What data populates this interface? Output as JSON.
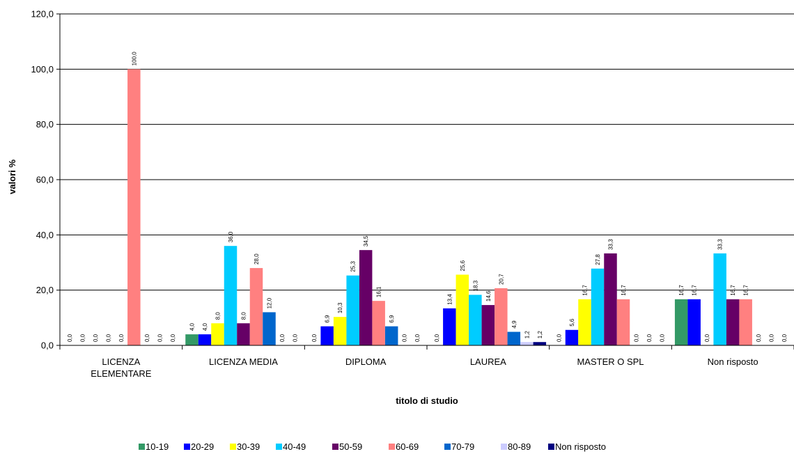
{
  "chart_data": {
    "type": "bar",
    "xlabel": "titolo di studio",
    "ylabel": "valori %",
    "ylim": [
      0,
      120
    ],
    "yticks": [
      "0,0",
      "20,0",
      "40,0",
      "60,0",
      "80,0",
      "100,0",
      "120,0"
    ],
    "grid": true,
    "legend_position": "bottom",
    "categories": [
      [
        "LICENZA",
        "ELEMENTARE"
      ],
      [
        "LICENZA MEDIA"
      ],
      [
        "DIPLOMA"
      ],
      [
        "LAUREA"
      ],
      [
        "MASTER O SPL"
      ],
      [
        "Non risposto"
      ]
    ],
    "series": [
      {
        "name": "10-19",
        "color": "#339966",
        "values": [
          0.0,
          4.0,
          0.0,
          0.0,
          0.0,
          16.7
        ],
        "labels": [
          "0,0",
          "4,0",
          "0,0",
          "0,0",
          "0,0",
          "16,7"
        ]
      },
      {
        "name": "20-29",
        "color": "#0000FF",
        "values": [
          0.0,
          4.0,
          6.9,
          13.4,
          5.6,
          16.7
        ],
        "labels": [
          "0,0",
          "4,0",
          "6,9",
          "13,4",
          "5,6",
          "16,7"
        ]
      },
      {
        "name": "30-39",
        "color": "#FFFF00",
        "values": [
          0.0,
          8.0,
          10.3,
          25.6,
          16.7,
          0.0
        ],
        "labels": [
          "0,0",
          "8,0",
          "10,3",
          "25,6",
          "16,7",
          "0,0"
        ]
      },
      {
        "name": "40-49",
        "color": "#00CCFF",
        "values": [
          0.0,
          36.0,
          25.3,
          18.3,
          27.8,
          33.3
        ],
        "labels": [
          "0,0",
          "36,0",
          "25,3",
          "18,3",
          "27,8",
          "33,3"
        ]
      },
      {
        "name": "50-59",
        "color": "#660066",
        "values": [
          0.0,
          8.0,
          34.5,
          14.6,
          33.3,
          16.7
        ],
        "labels": [
          "0,0",
          "8,0",
          "34,5",
          "14,6",
          "33,3",
          "16,7"
        ]
      },
      {
        "name": "60-69",
        "color": "#FF8080",
        "values": [
          100.0,
          28.0,
          16.1,
          20.7,
          16.7,
          16.7
        ],
        "labels": [
          "100,0",
          "28,0",
          "16,1",
          "20,7",
          "16,7",
          "16,7"
        ]
      },
      {
        "name": "70-79",
        "color": "#0066CC",
        "values": [
          0.0,
          12.0,
          6.9,
          4.9,
          0.0,
          0.0
        ],
        "labels": [
          "0,0",
          "12,0",
          "6,9",
          "4,9",
          "0,0",
          "0,0"
        ]
      },
      {
        "name": "80-89",
        "color": "#CCCCFF",
        "values": [
          0.0,
          0.0,
          0.0,
          1.2,
          0.0,
          0.0
        ],
        "labels": [
          "0,0",
          "0,0",
          "0,0",
          "1,2",
          "0,0",
          "0,0"
        ]
      },
      {
        "name": "Non risposto",
        "color": "#000080",
        "values": [
          0.0,
          0.0,
          0.0,
          1.2,
          0.0,
          0.0
        ],
        "labels": [
          "0,0",
          "0,0",
          "0,0",
          "1,2",
          "0,0",
          "0,0"
        ]
      }
    ]
  }
}
